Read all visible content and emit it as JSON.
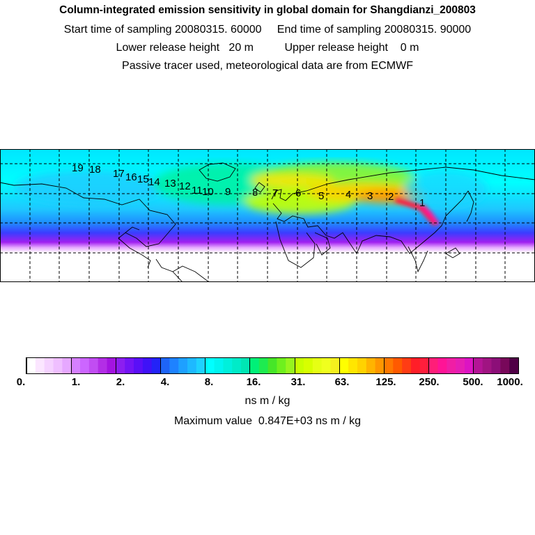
{
  "header": {
    "title": "Column-integrated emission sensitivity in global domain for Shangdianzi_200803",
    "sampling_line": "Start time of sampling 20080315. 60000     End time of sampling 20080315. 90000",
    "release_line": "Lower release height   20 m          Upper release height    0 m",
    "tracer_line": "Passive tracer used, meteorological data are from ECMWF"
  },
  "map": {
    "trajectory_labels": [
      "1",
      "2",
      "3",
      "4",
      "5",
      "6",
      "7",
      "8",
      "9",
      "10",
      "11",
      "12",
      "13",
      "14",
      "15",
      "16",
      "17",
      "18",
      "19"
    ]
  },
  "colorbar": {
    "tick_labels": [
      "0.",
      "1.",
      "2.",
      "4.",
      "8.",
      "16.",
      "31.",
      "63.",
      "125.",
      "250.",
      "500.",
      "1000."
    ],
    "colors": [
      "#ffffff",
      "#fbe6ff",
      "#f5d2ff",
      "#efbfff",
      "#e6a8ff",
      "#d580ff",
      "#cc66ff",
      "#c14df2",
      "#b32ee6",
      "#a314e0",
      "#8c1ef0",
      "#7314f5",
      "#5a0ff7",
      "#3f12f7",
      "#2323f7",
      "#1e64f7",
      "#1e82ff",
      "#1ea0ff",
      "#1eb9ff",
      "#1ed2ff",
      "#00ffff",
      "#00f5f0",
      "#00f0dc",
      "#00ebc8",
      "#00e6b4",
      "#00f078",
      "#1eeb50",
      "#46e628",
      "#6ef01e",
      "#96f51e",
      "#c8ff00",
      "#d7ff00",
      "#e6ff14",
      "#f0ff1e",
      "#f5f01e",
      "#ffff00",
      "#ffe600",
      "#ffd200",
      "#ffb400",
      "#ff9600",
      "#ff7800",
      "#ff5a00",
      "#ff3c14",
      "#ff1e28",
      "#ff1e3c",
      "#ff1e78",
      "#ff1496",
      "#f01ea5",
      "#e61eb4",
      "#dc14c3",
      "#b41496",
      "#a01482",
      "#8c0f78",
      "#78085a",
      "#500046"
    ],
    "units": "ns m / kg",
    "max_value_line": "Maximum value  0.847E+03 ns m / kg"
  }
}
